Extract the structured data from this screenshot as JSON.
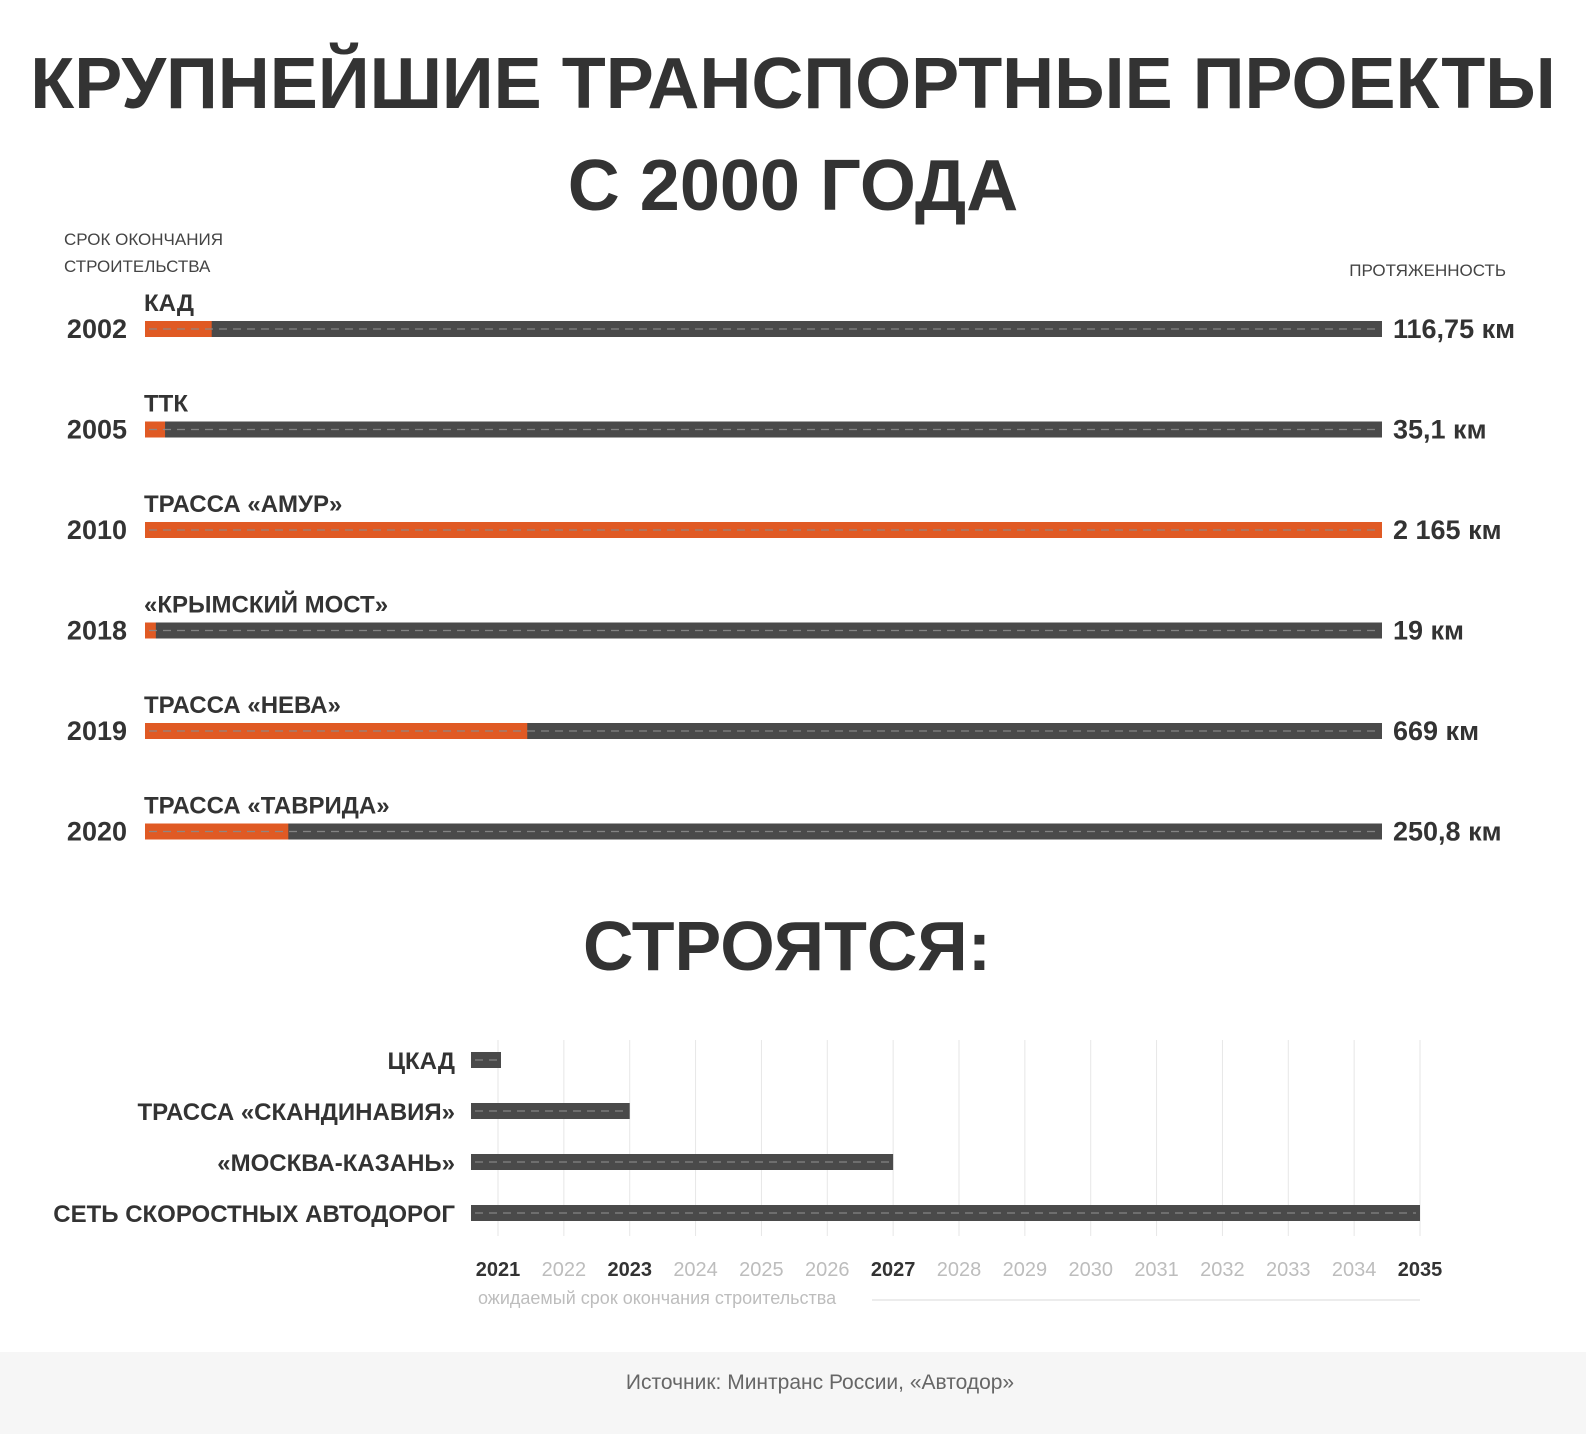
{
  "title_line1": "КРУПНЕЙШИЕ ТРАНСПОРТНЫЕ ПРОЕКТЫ",
  "title_line2": "С 2000 ГОДА",
  "left_header_line1": "СРОК ОКОНЧАНИЯ",
  "left_header_line2": "СТРОИТЕЛЬСТВА",
  "right_header": "ПРОТЯЖЕННОСТЬ",
  "section2_title": "СТРОЯТСЯ:",
  "axis_caption": "ожидаемый срок окончания строительства",
  "source": "Источник: Минтранс России, «Автодор»",
  "colors": {
    "text": "#333333",
    "road": "#4a4a4a",
    "highlight": "#e05a24",
    "dash": "#8a8a8a",
    "grid": "#e6e6e6",
    "tick_light": "#bdbdbd"
  },
  "chart_data": [
    {
      "type": "bar",
      "orientation": "horizontal",
      "categories": [
        "КАД",
        "ТТК",
        "ТРАССА «АМУР»",
        "«КРЫМСКИЙ МОСТ»",
        "ТРАССА «НЕВА»",
        "ТРАССА «ТАВРИДА»"
      ],
      "completion_years": [
        "2002",
        "2005",
        "2010",
        "2018",
        "2019",
        "2020"
      ],
      "values": [
        116.75,
        35.1,
        2165,
        19,
        669,
        250.8
      ],
      "value_labels": [
        "116,75 км",
        "35,1 км",
        "2 165 км",
        "19 км",
        "669 км",
        "250,8 км"
      ],
      "unit": "км",
      "xlim": [
        0,
        2165
      ]
    },
    {
      "type": "bar",
      "orientation": "horizontal",
      "categories": [
        "ЦКАД",
        "ТРАССА «СКАНДИНАВИЯ»",
        "«МОСКВА-КАЗАНЬ»",
        "СЕТЬ СКОРОСТНЫХ АВТОДОРОГ"
      ],
      "values": [
        2021,
        2023,
        2027,
        2035
      ],
      "x_ticks": [
        "2021",
        "2022",
        "2023",
        "2024",
        "2025",
        "2026",
        "2027",
        "2028",
        "2029",
        "2030",
        "2031",
        "2032",
        "2033",
        "2034",
        "2035"
      ],
      "highlighted_ticks": [
        "2021",
        "2023",
        "2027",
        "2035"
      ],
      "xlim": [
        2021,
        2035
      ],
      "grid": true
    }
  ]
}
